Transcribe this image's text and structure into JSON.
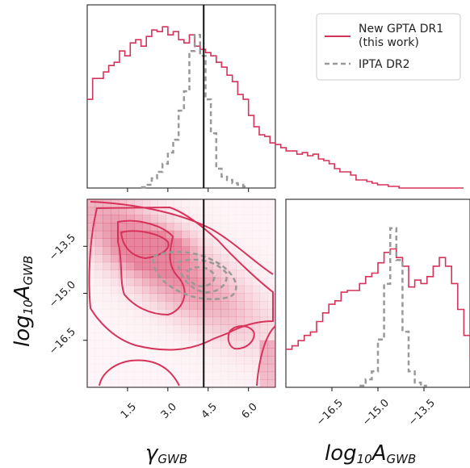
{
  "chart_data": {
    "type": "corner",
    "legend": {
      "placement": "top-right",
      "entries": [
        {
          "label_line1": "New GPTA DR1",
          "label_line2": "(this work)",
          "color": "#d6335a",
          "style": "solid"
        },
        {
          "label_line1": "IPTA DR2",
          "label_line2": "",
          "color": "#999999",
          "style": "dashed"
        }
      ]
    },
    "colors": {
      "primary": "#d6335a",
      "secondary": "#999999",
      "truth": "#111111"
    },
    "truth_gamma": 4.333,
    "gamma_axis": {
      "label_main": "γ",
      "label_sub": "GWB",
      "range": [
        0,
        7
      ],
      "ticks": [
        1.5,
        3.0,
        4.5,
        6.0
      ],
      "tick_labels": [
        "1.5",
        "3.0",
        "4.5",
        "6.0"
      ]
    },
    "logA_axis": {
      "label_main": "log",
      "label_sub10": "10",
      "label_A": "A",
      "label_subGWB": "GWB",
      "range": [
        -18,
        -12
      ],
      "ticks": [
        -16.5,
        -15.0,
        -13.5
      ],
      "tick_labels": [
        "−16.5",
        "−15.0",
        "−13.5"
      ]
    },
    "gamma_hist_new": {
      "edges_start": 0,
      "bin_width": 0.2,
      "values": [
        0.55,
        0.68,
        0.68,
        0.72,
        0.76,
        0.78,
        0.85,
        0.82,
        0.9,
        0.92,
        0.88,
        0.94,
        0.98,
        0.97,
        1.0,
        0.95,
        0.97,
        0.92,
        0.9,
        0.95,
        0.88,
        0.86,
        0.84,
        0.82,
        0.78,
        0.75,
        0.7,
        0.66,
        0.58,
        0.55,
        0.45,
        0.38,
        0.33,
        0.32,
        0.28,
        0.27,
        0.25,
        0.23,
        0.23,
        0.21,
        0.22,
        0.2,
        0.21,
        0.18,
        0.17,
        0.15,
        0.12,
        0.1,
        0.1,
        0.08,
        0.05,
        0.05,
        0.04,
        0.03,
        0.02,
        0.02,
        0.01,
        0.01,
        0.0,
        0.0,
        0.0,
        0.0,
        0.0,
        0.0,
        0.0,
        0.0,
        0.0,
        0.0,
        0.0,
        0.0
      ]
    },
    "gamma_hist_ipta": {
      "bins": [
        [
          2.0,
          0.005
        ],
        [
          2.2,
          0.02
        ],
        [
          2.4,
          0.06
        ],
        [
          2.6,
          0.1
        ],
        [
          2.8,
          0.15
        ],
        [
          3.0,
          0.22
        ],
        [
          3.2,
          0.3
        ],
        [
          3.4,
          0.48
        ],
        [
          3.6,
          0.6
        ],
        [
          3.8,
          0.85
        ],
        [
          4.0,
          0.95
        ],
        [
          4.2,
          0.82
        ],
        [
          4.4,
          0.55
        ],
        [
          4.6,
          0.34
        ],
        [
          4.8,
          0.12
        ],
        [
          5.0,
          0.07
        ],
        [
          5.2,
          0.05
        ],
        [
          5.4,
          0.03
        ],
        [
          5.6,
          0.02
        ],
        [
          5.8,
          0.01
        ]
      ]
    },
    "logA_hist_new": {
      "edges_start": -18,
      "bin_width": 0.2,
      "values": [
        0.22,
        0.24,
        0.27,
        0.3,
        0.32,
        0.38,
        0.43,
        0.48,
        0.5,
        0.55,
        0.56,
        0.56,
        0.6,
        0.64,
        0.66,
        0.72,
        0.78,
        0.8,
        0.75,
        0.7,
        0.58,
        0.62,
        0.6,
        0.64,
        0.7,
        0.75,
        0.7,
        0.6,
        0.45,
        0.3,
        0.18
      ]
    },
    "logA_hist_ipta": {
      "bins": [
        [
          -15.6,
          0.01
        ],
        [
          -15.4,
          0.05
        ],
        [
          -15.2,
          0.1
        ],
        [
          -15.0,
          0.3
        ],
        [
          -14.8,
          0.65
        ],
        [
          -14.6,
          1.0
        ],
        [
          -14.4,
          0.8
        ],
        [
          -14.2,
          0.35
        ],
        [
          -14.0,
          0.1
        ],
        [
          -13.8,
          0.03
        ],
        [
          -13.6,
          0.01
        ]
      ]
    },
    "joint_density_peak": {
      "gamma": 2.5,
      "logA": -13.6
    }
  }
}
